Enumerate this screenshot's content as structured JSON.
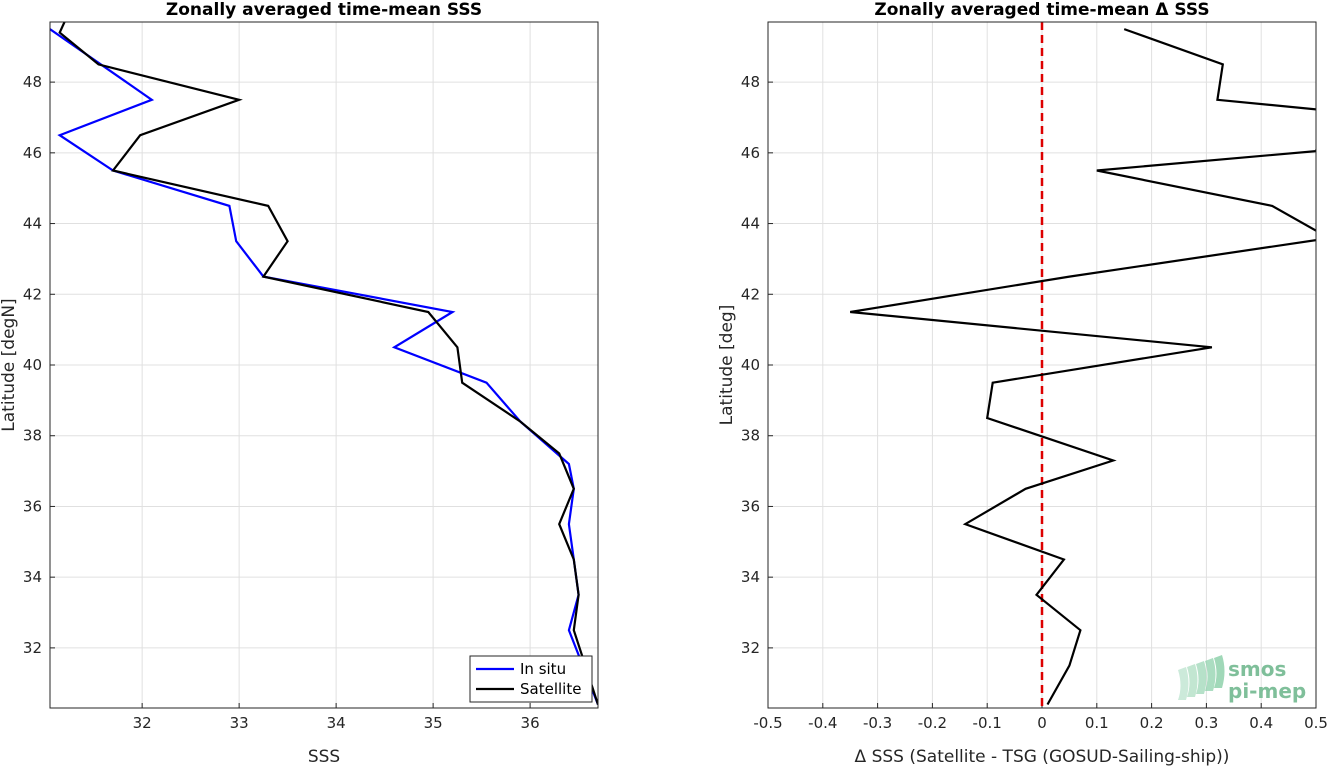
{
  "chart_data": [
    {
      "type": "line",
      "title": "Zonally averaged time-mean SSS",
      "xlabel": "SSS",
      "ylabel": "Latitude [degN]",
      "xlim": [
        31.05,
        36.7
      ],
      "ylim": [
        30.3,
        49.7
      ],
      "xticks": [
        "32",
        "33",
        "34",
        "35",
        "36"
      ],
      "yticks": [
        "32",
        "34",
        "36",
        "38",
        "40",
        "42",
        "44",
        "46",
        "48"
      ],
      "grid": true,
      "legend_position": "bottom-right",
      "series": [
        {
          "name": "In situ",
          "color": "#0000ff",
          "x": [
            31.05,
            32.1,
            31.15,
            31.7,
            32.9,
            32.97,
            33.25,
            35.2,
            34.6,
            35.55,
            35.9,
            36.4,
            36.45,
            36.4,
            36.45,
            36.5,
            36.4,
            36.7
          ],
          "y": [
            49.5,
            47.5,
            46.5,
            45.5,
            44.5,
            43.5,
            42.5,
            41.5,
            40.5,
            39.5,
            38.4,
            37.2,
            36.5,
            35.5,
            34.5,
            33.5,
            32.5,
            30.4
          ]
        },
        {
          "name": "Satellite",
          "color": "#000000",
          "x": [
            31.2,
            31.15,
            31.55,
            33.0,
            31.98,
            31.7,
            33.3,
            33.5,
            33.25,
            34.95,
            35.25,
            35.3,
            35.9,
            36.3,
            36.45,
            36.3,
            36.45,
            36.5,
            36.45,
            36.7
          ],
          "y": [
            49.7,
            49.4,
            48.5,
            47.5,
            46.5,
            45.5,
            44.5,
            43.5,
            42.5,
            41.5,
            40.5,
            39.5,
            38.4,
            37.5,
            36.5,
            35.5,
            34.5,
            33.5,
            32.5,
            30.4
          ]
        }
      ]
    },
    {
      "type": "line",
      "title": "Zonally averaged time-mean Δ SSS",
      "xlabel": "Δ SSS (Satellite - TSG (GOSUD-Sailing-ship))",
      "ylabel": "Latitude [deg]",
      "xlim": [
        -0.5,
        0.5
      ],
      "ylim": [
        30.3,
        49.7
      ],
      "xticks": [
        "-0.5",
        "-0.4",
        "-0.3",
        "-0.2",
        "-0.1",
        "0",
        "0.1",
        "0.2",
        "0.3",
        "0.4",
        "0.5"
      ],
      "yticks": [
        "32",
        "34",
        "36",
        "38",
        "40",
        "42",
        "44",
        "46",
        "48"
      ],
      "grid": true,
      "reference_line": {
        "x": 0,
        "color": "#dd0000",
        "style": "dashed"
      },
      "series": [
        {
          "color": "#000000",
          "x": [
            0.15,
            0.33,
            0.32,
            0.52,
            0.5,
            0.1,
            0.42,
            0.5,
            0.53,
            0.05,
            -0.35,
            0.31,
            -0.09,
            -0.1,
            0.13,
            -0.03,
            -0.14,
            0.04,
            -0.01,
            0.07,
            0.05,
            0.01
          ],
          "y": [
            49.5,
            48.5,
            47.5,
            47.2,
            46.05,
            45.5,
            44.5,
            43.8,
            43.6,
            42.5,
            41.5,
            40.5,
            39.5,
            38.5,
            37.3,
            36.5,
            35.5,
            34.5,
            33.5,
            32.5,
            31.5,
            30.4
          ]
        }
      ]
    }
  ],
  "logo": {
    "line1": "smos",
    "line2": "pi-mep"
  }
}
